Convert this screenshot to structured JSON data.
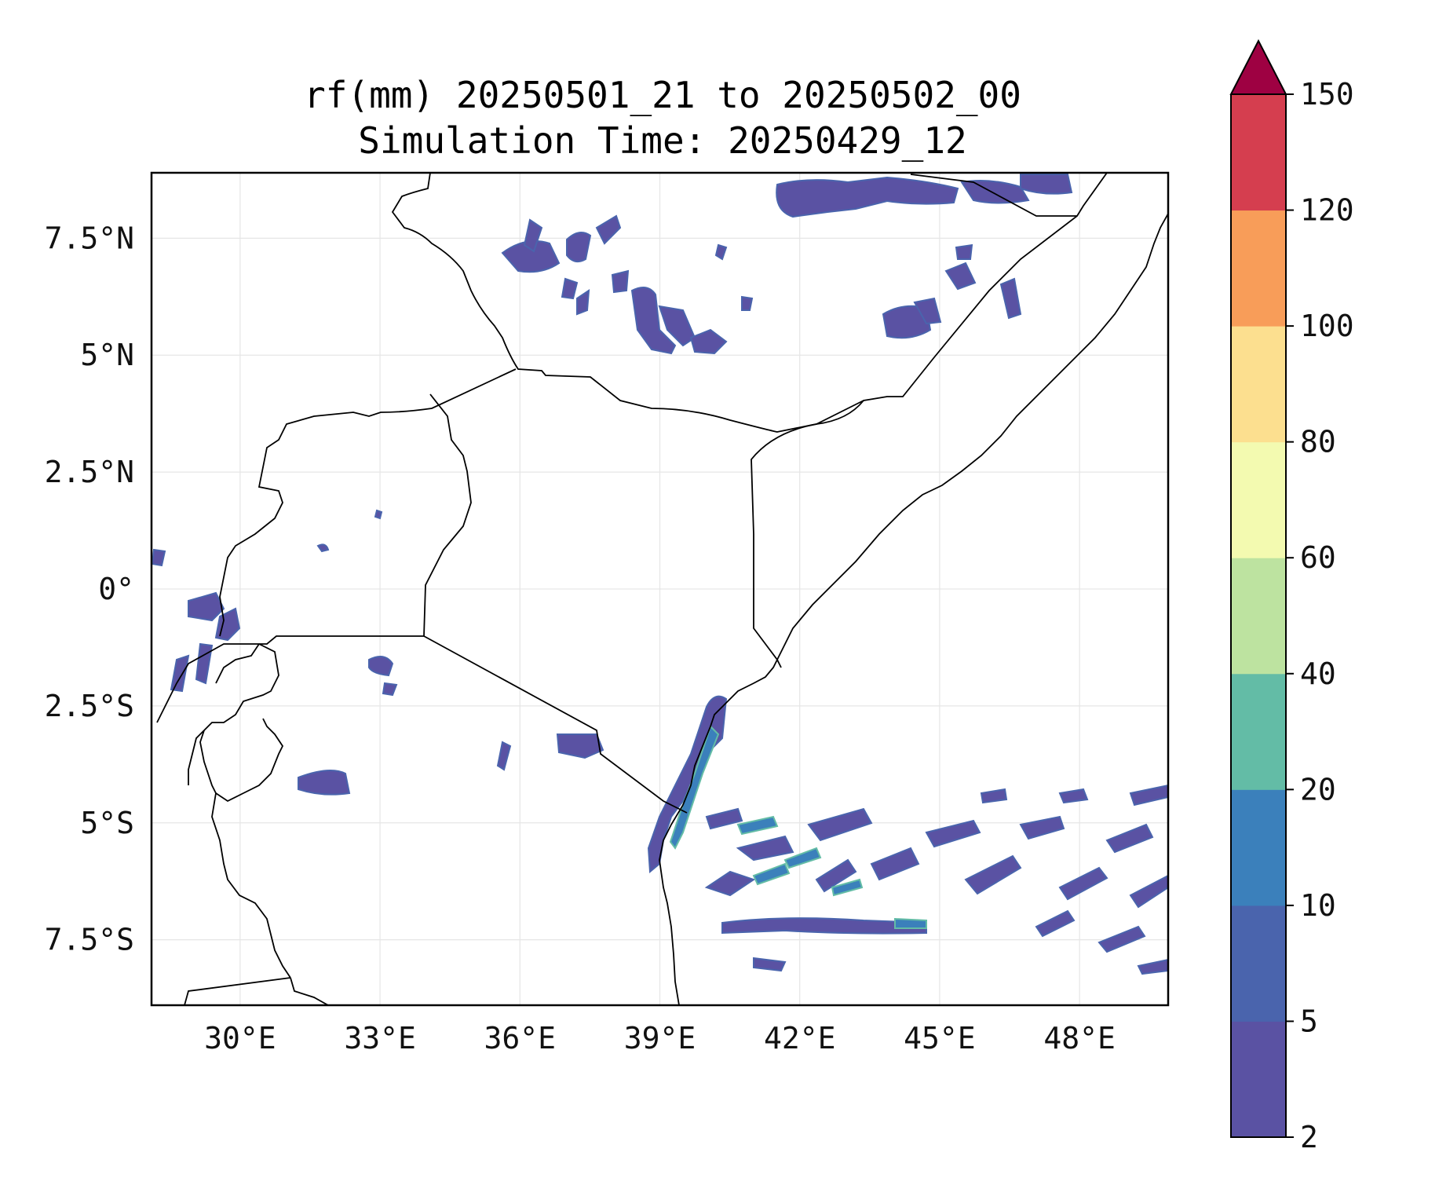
{
  "figure": {
    "title_line1": "rf(mm) 20250501_21 to 20250502_00",
    "title_line2": "Simulation Time: 20250429_12"
  },
  "chart_data": {
    "type": "heatmap",
    "lon_range": [
      28.1,
      49.9
    ],
    "lat_range": [
      -8.9,
      8.9
    ],
    "x_ticks": [
      {
        "value": 30,
        "label": "30°E"
      },
      {
        "value": 33,
        "label": "33°E"
      },
      {
        "value": 36,
        "label": "36°E"
      },
      {
        "value": 39,
        "label": "39°E"
      },
      {
        "value": 42,
        "label": "42°E"
      },
      {
        "value": 45,
        "label": "45°E"
      },
      {
        "value": 48,
        "label": "48°E"
      }
    ],
    "y_ticks": [
      {
        "value": 7.5,
        "label": "7.5°N"
      },
      {
        "value": 5,
        "label": "5°N"
      },
      {
        "value": 2.5,
        "label": "2.5°N"
      },
      {
        "value": 0,
        "label": "0°"
      },
      {
        "value": -2.5,
        "label": "2.5°S"
      },
      {
        "value": -5,
        "label": "5°S"
      },
      {
        "value": -7.5,
        "label": "7.5°S"
      }
    ],
    "grid": true,
    "colorbar": {
      "levels": [
        2,
        5,
        10,
        20,
        40,
        60,
        80,
        100,
        120,
        150
      ],
      "labels": [
        "2",
        "5",
        "10",
        "20",
        "40",
        "60",
        "80",
        "100",
        "120",
        "150"
      ],
      "colors": [
        "#5a52a3",
        "#4a64ad",
        "#3b80bb",
        "#63bca6",
        "#bde3a0",
        "#f3fab0",
        "#fcdf8f",
        "#f89d59",
        "#d53e4f"
      ],
      "extend_color": "#9e0142",
      "extend": "max"
    }
  }
}
